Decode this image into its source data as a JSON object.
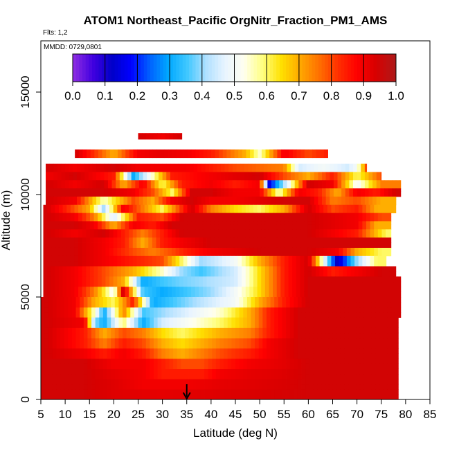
{
  "chart_data": {
    "type": "heatmap",
    "title": "ATOM1 Northeast_Pacific OrgNitr_Fraction_PM1_AMS",
    "flights_label": "Flts: 1,2",
    "date_label": "MMDD: 0729,0801",
    "xlabel": "Latitude (deg N)",
    "ylabel": "Altitude (m)",
    "xlim": [
      5,
      85
    ],
    "ylim": [
      0,
      17500
    ],
    "x_ticks": [
      "5",
      "10",
      "15",
      "20",
      "25",
      "30",
      "35",
      "40",
      "45",
      "50",
      "55",
      "60",
      "65",
      "70",
      "75",
      "80",
      "85"
    ],
    "y_ticks": [
      "0",
      "5000",
      "10000",
      "15000"
    ],
    "colorbar": {
      "range": [
        0.0,
        1.0
      ],
      "tick_labels": [
        "0.0",
        "0.1",
        "0.2",
        "0.3",
        "0.4",
        "0.5",
        "0.6",
        "0.7",
        "0.8",
        "0.9",
        "1.0"
      ],
      "colors": [
        "#8a2be2",
        "#4000e0",
        "#0000c8",
        "#0000ff",
        "#0060ff",
        "#00a8ff",
        "#40c8ff",
        "#b0e0ff",
        "#e8f4ff",
        "#fffff0",
        "#ffff80",
        "#ffe000",
        "#ffa800",
        "#ff7000",
        "#ff3000",
        "#ff0000",
        "#d80000",
        "#b01818"
      ]
    },
    "marker": {
      "latitude": 35,
      "symbol": "down-arrow"
    },
    "field_rows": [
      {
        "alt": [
          12700,
          13000
        ],
        "x": [
          25,
          30,
          34
        ],
        "v": [
          0.95,
          0.9,
          0.95
        ]
      },
      {
        "alt": [
          11800,
          12200
        ],
        "x": [
          12,
          20,
          25,
          30,
          35,
          40,
          47,
          50,
          55,
          60,
          64
        ],
        "v": [
          0.95,
          0.7,
          0.9,
          0.92,
          0.9,
          0.85,
          0.7,
          0.55,
          0.9,
          0.8,
          0.85
        ]
      },
      {
        "alt": [
          11100,
          11500
        ],
        "x": [
          6,
          12,
          20,
          25,
          30,
          35,
          40,
          45,
          55,
          58,
          63,
          68,
          70,
          72
        ],
        "v": [
          0.95,
          0.9,
          0.95,
          0.9,
          0.9,
          0.9,
          0.85,
          0.8,
          0.75,
          0.45,
          0.5,
          0.45,
          0.5,
          0.8
        ]
      },
      {
        "alt": [
          10700,
          11100
        ],
        "x": [
          6,
          12,
          20,
          24,
          28,
          32,
          40,
          50,
          55,
          60,
          65,
          70,
          75
        ],
        "v": [
          0.9,
          0.95,
          0.85,
          0.3,
          0.55,
          0.85,
          0.9,
          0.95,
          0.8,
          0.7,
          0.85,
          0.6,
          0.8
        ]
      },
      {
        "alt": [
          10300,
          10700
        ],
        "x": [
          6,
          12,
          18,
          22,
          26,
          30,
          34,
          40,
          45,
          50,
          52,
          56,
          60,
          65,
          70,
          75
        ],
        "v": [
          0.95,
          0.9,
          0.95,
          0.7,
          0.9,
          0.6,
          0.85,
          0.9,
          0.85,
          0.9,
          0.15,
          0.5,
          0.95,
          0.9,
          0.5,
          0.75
        ]
      },
      {
        "alt": [
          9900,
          10300
        ],
        "x": [
          6,
          12,
          18,
          24,
          28,
          32,
          36,
          40,
          45,
          50,
          54,
          58,
          62,
          66,
          70,
          74,
          78
        ],
        "v": [
          0.95,
          0.95,
          0.95,
          0.9,
          0.8,
          0.6,
          0.95,
          0.95,
          0.9,
          0.9,
          0.55,
          0.9,
          0.85,
          0.7,
          0.9,
          0.85,
          0.95
        ]
      },
      {
        "alt": [
          9500,
          9900
        ],
        "x": [
          6,
          12,
          18,
          24,
          28,
          32,
          36,
          40,
          45,
          55,
          60,
          65,
          70,
          75
        ],
        "v": [
          0.95,
          0.9,
          0.55,
          0.8,
          0.7,
          0.9,
          0.95,
          0.9,
          0.9,
          0.95,
          0.95,
          0.75,
          0.8,
          0.7
        ]
      },
      {
        "alt": [
          9100,
          9500
        ],
        "x": [
          6,
          10,
          15,
          18,
          22,
          26,
          30,
          36,
          40,
          45,
          50,
          55,
          60,
          65,
          70,
          74
        ],
        "v": [
          0.95,
          0.85,
          0.7,
          0.4,
          0.9,
          0.75,
          0.6,
          0.95,
          0.75,
          0.65,
          0.6,
          0.7,
          0.95,
          0.8,
          0.85,
          0.7
        ]
      },
      {
        "alt": [
          8700,
          9100
        ],
        "x": [
          6,
          12,
          16,
          20,
          25,
          30,
          34,
          40,
          50,
          60,
          70,
          75
        ],
        "v": [
          0.95,
          0.9,
          0.75,
          0.45,
          0.85,
          0.8,
          0.95,
          0.95,
          0.95,
          0.95,
          0.9,
          0.8
        ]
      },
      {
        "alt": [
          8300,
          8700
        ],
        "x": [
          6,
          12,
          16,
          20,
          24,
          28,
          32,
          40,
          50,
          60,
          70,
          74
        ],
        "v": [
          0.95,
          0.95,
          0.9,
          0.7,
          0.9,
          0.85,
          0.95,
          0.95,
          0.95,
          0.95,
          0.9,
          0.7
        ]
      },
      {
        "alt": [
          7900,
          8300
        ],
        "x": [
          6,
          12,
          18,
          22,
          26,
          30,
          34,
          40,
          50,
          60,
          70,
          76
        ],
        "v": [
          0.95,
          0.9,
          0.95,
          0.85,
          0.75,
          0.85,
          0.95,
          0.95,
          0.95,
          0.95,
          0.85,
          0.6
        ]
      },
      {
        "alt": [
          7400,
          7900
        ],
        "x": [
          6,
          12,
          18,
          22,
          26,
          30,
          34,
          40,
          50,
          60,
          70
        ],
        "v": [
          0.95,
          0.95,
          0.9,
          0.85,
          0.7,
          0.85,
          0.9,
          0.95,
          0.95,
          0.95,
          0.95
        ]
      },
      {
        "alt": [
          7000,
          7400
        ],
        "x": [
          6,
          12,
          18,
          24,
          28,
          32,
          35,
          40,
          50,
          60,
          66,
          70,
          75
        ],
        "v": [
          0.95,
          0.95,
          0.9,
          0.8,
          0.75,
          0.8,
          0.85,
          0.9,
          0.95,
          0.95,
          0.9,
          0.7,
          0.6
        ]
      },
      {
        "alt": [
          6500,
          7000
        ],
        "x": [
          6,
          12,
          18,
          24,
          30,
          34,
          38,
          45,
          50,
          55,
          60,
          66,
          70,
          74
        ],
        "v": [
          0.95,
          0.95,
          0.9,
          0.85,
          0.8,
          0.6,
          0.4,
          0.5,
          0.7,
          0.85,
          0.95,
          0.1,
          0.4,
          0.6
        ]
      },
      {
        "alt": [
          6000,
          6500
        ],
        "x": [
          6,
          12,
          18,
          24,
          30,
          34,
          38,
          45,
          50,
          55,
          60,
          65,
          70,
          75
        ],
        "v": [
          0.95,
          0.9,
          0.8,
          0.7,
          0.55,
          0.4,
          0.35,
          0.45,
          0.65,
          0.85,
          0.95,
          0.85,
          0.9,
          0.95
        ]
      },
      {
        "alt": [
          5500,
          6000
        ],
        "x": [
          6,
          12,
          18,
          22,
          26,
          30,
          34,
          38,
          45,
          50,
          55,
          60,
          70
        ],
        "v": [
          0.95,
          0.9,
          0.8,
          0.7,
          0.3,
          0.35,
          0.38,
          0.4,
          0.45,
          0.65,
          0.85,
          0.95,
          0.95
        ]
      },
      {
        "alt": [
          5000,
          5500
        ],
        "x": [
          6,
          12,
          16,
          20,
          22,
          26,
          30,
          35,
          40,
          45,
          50,
          55,
          60,
          70
        ],
        "v": [
          0.95,
          0.9,
          0.75,
          0.5,
          0.95,
          0.35,
          0.3,
          0.35,
          0.4,
          0.5,
          0.65,
          0.85,
          0.95,
          0.95
        ]
      },
      {
        "alt": [
          4500,
          5000
        ],
        "x": [
          6,
          12,
          16,
          20,
          24,
          28,
          32,
          36,
          40,
          45,
          50,
          55,
          60,
          70
        ],
        "v": [
          0.95,
          0.9,
          0.7,
          0.6,
          0.85,
          0.3,
          0.35,
          0.4,
          0.45,
          0.5,
          0.7,
          0.85,
          0.95,
          0.95
        ]
      },
      {
        "alt": [
          4000,
          4500
        ],
        "x": [
          6,
          12,
          16,
          18,
          22,
          26,
          30,
          34,
          38,
          42,
          48,
          52,
          58,
          65
        ],
        "v": [
          0.95,
          0.9,
          0.55,
          0.3,
          0.75,
          0.35,
          0.4,
          0.45,
          0.5,
          0.55,
          0.7,
          0.85,
          0.95,
          0.95
        ]
      },
      {
        "alt": [
          3500,
          4000
        ],
        "x": [
          6,
          14,
          16,
          18,
          22,
          26,
          30,
          34,
          38,
          42,
          48,
          52,
          58,
          65
        ],
        "v": [
          0.95,
          0.9,
          0.4,
          0.3,
          0.6,
          0.3,
          0.45,
          0.5,
          0.55,
          0.6,
          0.7,
          0.85,
          0.95,
          0.95
        ]
      },
      {
        "alt": [
          3000,
          3500
        ],
        "x": [
          6,
          14,
          18,
          22,
          26,
          30,
          34,
          38,
          42,
          48,
          52,
          58,
          65
        ],
        "v": [
          0.95,
          0.85,
          0.7,
          0.8,
          0.75,
          0.65,
          0.6,
          0.65,
          0.7,
          0.75,
          0.85,
          0.95,
          0.95
        ]
      },
      {
        "alt": [
          2500,
          3000
        ],
        "x": [
          6,
          14,
          18,
          22,
          26,
          30,
          34,
          38,
          42,
          48,
          52,
          58,
          65
        ],
        "v": [
          0.95,
          0.85,
          0.75,
          0.85,
          0.8,
          0.7,
          0.65,
          0.7,
          0.75,
          0.8,
          0.9,
          0.95,
          0.95
        ]
      },
      {
        "alt": [
          2000,
          2500
        ],
        "x": [
          6,
          14,
          18,
          22,
          26,
          30,
          34,
          38,
          42,
          48,
          52,
          58,
          65
        ],
        "v": [
          0.95,
          0.9,
          0.85,
          0.9,
          0.85,
          0.75,
          0.7,
          0.75,
          0.8,
          0.85,
          0.9,
          0.95,
          0.95
        ]
      },
      {
        "alt": [
          1500,
          2000
        ],
        "x": [
          6,
          14,
          20,
          26,
          30,
          34,
          38,
          42,
          48,
          54,
          60
        ],
        "v": [
          0.95,
          0.95,
          0.9,
          0.9,
          0.85,
          0.8,
          0.8,
          0.85,
          0.9,
          0.92,
          0.95
        ]
      },
      {
        "alt": [
          1000,
          1500
        ],
        "x": [
          6,
          14,
          20,
          26,
          30,
          34,
          38,
          42,
          48,
          54,
          60
        ],
        "v": [
          0.95,
          0.95,
          0.92,
          0.9,
          0.85,
          0.85,
          0.85,
          0.9,
          0.92,
          0.93,
          0.95
        ]
      },
      {
        "alt": [
          500,
          1000
        ],
        "x": [
          6,
          14,
          20,
          26,
          34,
          42,
          50,
          60
        ],
        "v": [
          0.95,
          0.95,
          0.93,
          0.9,
          0.9,
          0.92,
          0.93,
          0.95
        ]
      },
      {
        "alt": [
          0,
          500
        ],
        "x": [
          6,
          14,
          20,
          30,
          40,
          50,
          60
        ],
        "v": [
          0.95,
          0.95,
          0.93,
          0.92,
          0.93,
          0.94,
          0.95
        ]
      }
    ],
    "extent": [
      {
        "alt": [
          13000,
          12700
        ],
        "lat": [
          25,
          34
        ]
      },
      {
        "alt": [
          12200,
          11800
        ],
        "lat": [
          12,
          64
        ]
      },
      {
        "alt": [
          11500,
          11100
        ],
        "lat": [
          6,
          72
        ]
      },
      {
        "alt": [
          11100,
          10700
        ],
        "lat": [
          6,
          75
        ]
      },
      {
        "alt": [
          10700,
          10300
        ],
        "lat": [
          6,
          79
        ]
      },
      {
        "alt": [
          10300,
          9900
        ],
        "lat": [
          6,
          79
        ]
      },
      {
        "alt": [
          9900,
          9500
        ],
        "lat": [
          6,
          78
        ]
      },
      {
        "alt": [
          9500,
          9100
        ],
        "lat": [
          5.5,
          78
        ]
      },
      {
        "alt": [
          9100,
          8700
        ],
        "lat": [
          5.5,
          77
        ]
      },
      {
        "alt": [
          8700,
          8300
        ],
        "lat": [
          5.5,
          77
        ]
      },
      {
        "alt": [
          8300,
          7900
        ],
        "lat": [
          5.5,
          77
        ]
      },
      {
        "alt": [
          7900,
          7400
        ],
        "lat": [
          5.5,
          77
        ]
      },
      {
        "alt": [
          7400,
          7000
        ],
        "lat": [
          5.5,
          77
        ]
      },
      {
        "alt": [
          7000,
          6500
        ],
        "lat": [
          5.5,
          76
        ]
      },
      {
        "alt": [
          6500,
          6000
        ],
        "lat": [
          5.5,
          78
        ]
      },
      {
        "alt": [
          6000,
          5500
        ],
        "lat": [
          5.5,
          79
        ]
      },
      {
        "alt": [
          5500,
          5000
        ],
        "lat": [
          5.5,
          79
        ]
      },
      {
        "alt": [
          5000,
          4000
        ],
        "lat": [
          5,
          79
        ]
      },
      {
        "alt": [
          4000,
          0
        ],
        "lat": [
          5,
          78.5
        ]
      }
    ]
  }
}
